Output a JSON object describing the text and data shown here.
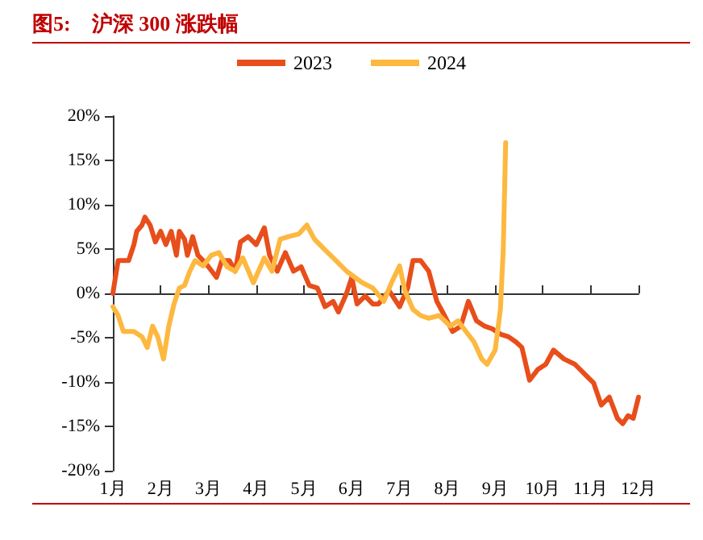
{
  "chart_data": {
    "type": "line",
    "title": "图5:　沪深 300 涨跌幅",
    "xlim": [
      1,
      12
    ],
    "xticks": [
      {
        "value": 1,
        "label": "1月"
      },
      {
        "value": 2,
        "label": "2月"
      },
      {
        "value": 3,
        "label": "3月"
      },
      {
        "value": 4,
        "label": "4月"
      },
      {
        "value": 5,
        "label": "5月"
      },
      {
        "value": 6,
        "label": "6月"
      },
      {
        "value": 7,
        "label": "7月"
      },
      {
        "value": 8,
        "label": "8月"
      },
      {
        "value": 9,
        "label": "9月"
      },
      {
        "value": 10,
        "label": "10月"
      },
      {
        "value": 11,
        "label": "11月"
      },
      {
        "value": 12,
        "label": "12月"
      }
    ],
    "ylim": [
      -20,
      20
    ],
    "yticks": [
      {
        "value": -20,
        "label": "-20%"
      },
      {
        "value": -15,
        "label": "-15%"
      },
      {
        "value": -10,
        "label": "-10%"
      },
      {
        "value": -5,
        "label": "-5%"
      },
      {
        "value": 0,
        "label": "0%"
      },
      {
        "value": 5,
        "label": "5%"
      },
      {
        "value": 10,
        "label": "10%"
      },
      {
        "value": 15,
        "label": "15%"
      },
      {
        "value": 20,
        "label": "20%"
      }
    ],
    "legend": "top",
    "marker": "none",
    "line_style": "solid",
    "series": [
      {
        "name": "2023",
        "color": "#e84e1b",
        "x": [
          1.0,
          1.11,
          1.33,
          1.44,
          1.5,
          1.61,
          1.67,
          1.78,
          1.89,
          2.0,
          2.11,
          2.22,
          2.33,
          2.39,
          2.5,
          2.56,
          2.67,
          2.78,
          2.89,
          3.0,
          3.17,
          3.28,
          3.44,
          3.56,
          3.67,
          3.83,
          4.0,
          4.17,
          4.28,
          4.44,
          4.61,
          4.78,
          4.94,
          5.11,
          5.28,
          5.44,
          5.61,
          5.72,
          5.89,
          6.0,
          6.11,
          6.28,
          6.44,
          6.56,
          6.78,
          7.0,
          7.17,
          7.28,
          7.44,
          7.61,
          7.78,
          7.94,
          8.11,
          8.28,
          8.44,
          8.61,
          8.78,
          8.94,
          9.11,
          9.28,
          9.44,
          9.56,
          9.72,
          9.89,
          10.06,
          10.22,
          10.44,
          10.67,
          10.89,
          11.06,
          11.22,
          11.39,
          11.56,
          11.67,
          11.78,
          11.89,
          12.0
        ],
        "values": [
          0,
          3.7,
          3.7,
          5.5,
          7,
          7.7,
          8.6,
          7.7,
          5.8,
          7,
          5.5,
          7,
          4.3,
          7,
          6.1,
          4.3,
          6.4,
          4.3,
          3.7,
          3,
          1.8,
          3.7,
          3.7,
          2.5,
          5.8,
          6.4,
          5.5,
          7.4,
          4.3,
          2.5,
          4.6,
          2.5,
          3,
          0.9,
          0.6,
          -1.5,
          -0.9,
          -2.1,
          0,
          1.8,
          -1.2,
          -0.3,
          -1.2,
          -1.2,
          0.3,
          -1.5,
          0.6,
          3.7,
          3.7,
          2.5,
          -0.9,
          -2.5,
          -4.3,
          -3.7,
          -0.9,
          -3.1,
          -3.7,
          -4,
          -4.6,
          -4.9,
          -5.5,
          -6.1,
          -9.8,
          -8.6,
          -8,
          -6.4,
          -7.4,
          -8,
          -9.2,
          -10.1,
          -12.6,
          -11.7,
          -14.1,
          -14.7,
          -13.8,
          -14.1,
          -11.7
        ]
      },
      {
        "name": "2024",
        "color": "#fdb840",
        "x": [
          1.0,
          1.11,
          1.22,
          1.44,
          1.61,
          1.72,
          1.83,
          1.94,
          2.06,
          2.17,
          2.28,
          2.39,
          2.5,
          2.61,
          2.72,
          2.89,
          3.06,
          3.22,
          3.39,
          3.56,
          3.72,
          3.94,
          4.17,
          4.33,
          4.5,
          4.67,
          4.89,
          5.06,
          5.22,
          5.44,
          5.67,
          5.89,
          6.22,
          6.44,
          6.67,
          6.83,
          7.0,
          7.11,
          7.28,
          7.44,
          7.61,
          7.83,
          8.06,
          8.22,
          8.39,
          8.56,
          8.72,
          8.83,
          9.0,
          9.11,
          9.17,
          9.22
        ],
        "values": [
          -1.5,
          -2.5,
          -4.3,
          -4.3,
          -4.9,
          -6.1,
          -3.7,
          -4.9,
          -7.4,
          -3.7,
          -1.2,
          0.6,
          0.9,
          2.5,
          3.7,
          3.1,
          4.3,
          4.6,
          3,
          2.5,
          4,
          1.2,
          4,
          2.5,
          6.1,
          6.4,
          6.7,
          7.7,
          6.1,
          4.9,
          3.7,
          2.5,
          1.2,
          0.6,
          -0.9,
          1.2,
          3.1,
          0.3,
          -1.8,
          -2.5,
          -2.8,
          -2.5,
          -3.7,
          -3.1,
          -4.3,
          -5.5,
          -7.4,
          -8,
          -6.4,
          -1.8,
          5,
          17
        ]
      }
    ]
  }
}
